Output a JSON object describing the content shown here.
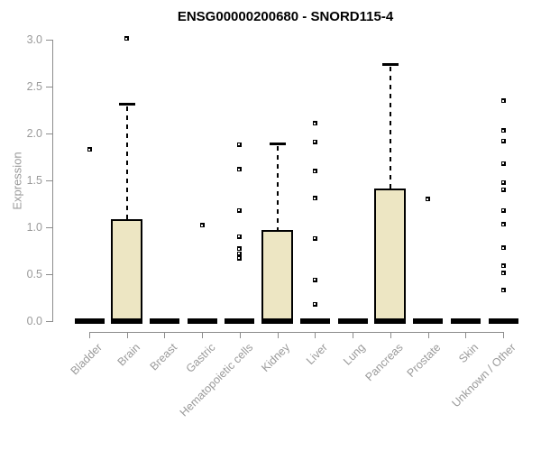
{
  "chart_data": {
    "type": "boxplot",
    "title": "ENSG00000200680 - SNORD115-4",
    "ylabel": "Expression",
    "xlabel": "",
    "ylim": [
      0.0,
      3.0
    ],
    "yticks": [
      0.0,
      0.5,
      1.0,
      1.5,
      2.0,
      2.5,
      3.0
    ],
    "grid": false,
    "legend": false,
    "categories": [
      "Bladder",
      "Brain",
      "Breast",
      "Gastric",
      "Hematopoietic cells",
      "Kidney",
      "Liver",
      "Lung",
      "Pancreas",
      "Prostate",
      "Skin",
      "Unknown / Other"
    ],
    "series": [
      {
        "category": "Bladder",
        "whisker_low": 0,
        "q1": 0,
        "median": 0,
        "q3": 0,
        "whisker_high": 0,
        "outliers": [
          1.83
        ]
      },
      {
        "category": "Brain",
        "whisker_low": 0,
        "q1": 0,
        "median": 0,
        "q3": 1.09,
        "whisker_high": 2.32,
        "outliers": [
          3.01
        ]
      },
      {
        "category": "Breast",
        "whisker_low": 0,
        "q1": 0,
        "median": 0,
        "q3": 0,
        "whisker_high": 0,
        "outliers": []
      },
      {
        "category": "Gastric",
        "whisker_low": 0,
        "q1": 0,
        "median": 0,
        "q3": 0,
        "whisker_high": 0,
        "outliers": [
          1.02
        ]
      },
      {
        "category": "Hematopoietic cells",
        "whisker_low": 0,
        "q1": 0,
        "median": 0,
        "q3": 0,
        "whisker_high": 0,
        "outliers": [
          1.88,
          1.62,
          1.18,
          0.9,
          0.77,
          0.72,
          0.67
        ]
      },
      {
        "category": "Kidney",
        "whisker_low": 0,
        "q1": 0,
        "median": 0,
        "q3": 0.97,
        "whisker_high": 1.89,
        "outliers": []
      },
      {
        "category": "Liver",
        "whisker_low": 0,
        "q1": 0,
        "median": 0,
        "q3": 0,
        "whisker_high": 0,
        "outliers": [
          2.11,
          1.91,
          1.6,
          1.31,
          0.88,
          0.44,
          0.18
        ]
      },
      {
        "category": "Lung",
        "whisker_low": 0,
        "q1": 0,
        "median": 0,
        "q3": 0,
        "whisker_high": 0,
        "outliers": []
      },
      {
        "category": "Pancreas",
        "whisker_low": 0,
        "q1": 0,
        "median": 0,
        "q3": 1.41,
        "whisker_high": 2.74,
        "outliers": []
      },
      {
        "category": "Prostate",
        "whisker_low": 0,
        "q1": 0,
        "median": 0,
        "q3": 0,
        "whisker_high": 0,
        "outliers": [
          1.3
        ]
      },
      {
        "category": "Skin",
        "whisker_low": 0,
        "q1": 0,
        "median": 0,
        "q3": 0,
        "whisker_high": 0,
        "outliers": []
      },
      {
        "category": "Unknown / Other",
        "whisker_low": 0,
        "q1": 0,
        "median": 0,
        "q3": 0,
        "whisker_high": 0,
        "outliers": [
          2.35,
          2.03,
          1.92,
          1.68,
          1.48,
          1.4,
          1.18,
          1.03,
          0.78,
          0.59,
          0.51,
          0.33
        ]
      }
    ],
    "colors": {
      "box_fill": "#ede6c3",
      "box_border": "#000000",
      "median": "#000000",
      "axis": "#8c8c8c",
      "tick_label": "#9a9a9a",
      "title": "#000000",
      "background": "#ffffff"
    }
  }
}
